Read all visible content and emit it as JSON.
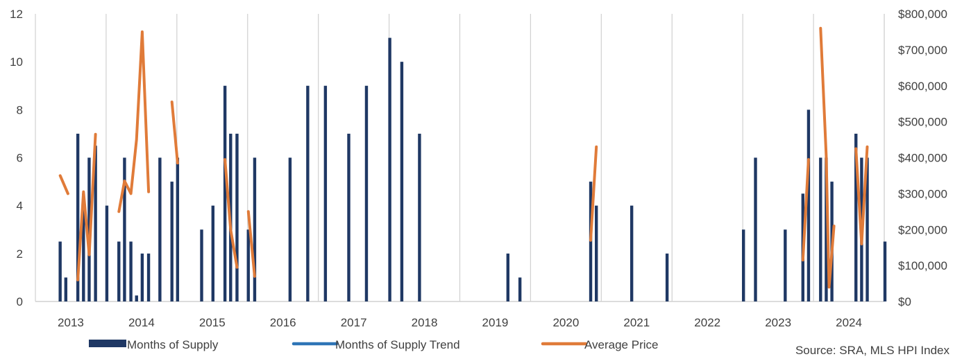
{
  "chart_data": {
    "type": "bar",
    "title": "",
    "xlabel": "",
    "ylabel": "",
    "ylim": [
      0,
      12
    ],
    "y2lim": [
      0,
      800000
    ],
    "yticks": [
      "0",
      "2",
      "4",
      "6",
      "8",
      "10",
      "12"
    ],
    "y2ticks": [
      "$0",
      "$100,000",
      "$200,000",
      "$300,000",
      "$400,000",
      "$500,000",
      "$600,000",
      "$700,000",
      "$800,000"
    ],
    "xticks": [
      "2013",
      "2014",
      "2015",
      "2016",
      "2017",
      "2018",
      "2019",
      "2020",
      "2021",
      "2022",
      "2023",
      "2024"
    ],
    "grid": "vertical",
    "legend_position": "bottom",
    "colors": {
      "bar": "#1f3864",
      "trend": "#2e75b6",
      "price": "#e07b39",
      "grid": "#d0d0d0",
      "text": "#404040"
    },
    "series": [
      {
        "name": "Months of Supply",
        "type": "bar",
        "axis": "left",
        "points": [
          {
            "x": 2013.05,
            "y": 2.5
          },
          {
            "x": 2013.13,
            "y": 1
          },
          {
            "x": 2013.3,
            "y": 7
          },
          {
            "x": 2013.38,
            "y": 4.5
          },
          {
            "x": 2013.46,
            "y": 6
          },
          {
            "x": 2013.55,
            "y": 6.5
          },
          {
            "x": 2013.71,
            "y": 4
          },
          {
            "x": 2013.88,
            "y": 2.5
          },
          {
            "x": 2013.96,
            "y": 6
          },
          {
            "x": 2014.05,
            "y": 2.5
          },
          {
            "x": 2014.13,
            "y": 0.25
          },
          {
            "x": 2014.21,
            "y": 2
          },
          {
            "x": 2014.3,
            "y": 2
          },
          {
            "x": 2014.46,
            "y": 6
          },
          {
            "x": 2014.63,
            "y": 5
          },
          {
            "x": 2014.71,
            "y": 6
          },
          {
            "x": 2015.05,
            "y": 3
          },
          {
            "x": 2015.21,
            "y": 4
          },
          {
            "x": 2015.38,
            "y": 9
          },
          {
            "x": 2015.46,
            "y": 7
          },
          {
            "x": 2015.55,
            "y": 7
          },
          {
            "x": 2015.71,
            "y": 3
          },
          {
            "x": 2015.8,
            "y": 6
          },
          {
            "x": 2016.3,
            "y": 6
          },
          {
            "x": 2016.55,
            "y": 9
          },
          {
            "x": 2016.8,
            "y": 9
          },
          {
            "x": 2017.13,
            "y": 7
          },
          {
            "x": 2017.38,
            "y": 9
          },
          {
            "x": 2017.71,
            "y": 11
          },
          {
            "x": 2017.88,
            "y": 10
          },
          {
            "x": 2018.13,
            "y": 7
          },
          {
            "x": 2019.38,
            "y": 2
          },
          {
            "x": 2019.55,
            "y": 1
          },
          {
            "x": 2020.55,
            "y": 5
          },
          {
            "x": 2020.63,
            "y": 4
          },
          {
            "x": 2021.13,
            "y": 4
          },
          {
            "x": 2021.63,
            "y": 2
          },
          {
            "x": 2022.71,
            "y": 3
          },
          {
            "x": 2022.88,
            "y": 6
          },
          {
            "x": 2023.3,
            "y": 3
          },
          {
            "x": 2023.55,
            "y": 4.5
          },
          {
            "x": 2023.63,
            "y": 8
          },
          {
            "x": 2023.8,
            "y": 6
          },
          {
            "x": 2023.88,
            "y": 6
          },
          {
            "x": 2023.96,
            "y": 5
          },
          {
            "x": 2024.3,
            "y": 7
          },
          {
            "x": 2024.38,
            "y": 6
          },
          {
            "x": 2024.46,
            "y": 6
          },
          {
            "x": 2024.71,
            "y": 2.5
          }
        ]
      },
      {
        "name": "Months of Supply Trend",
        "type": "line",
        "axis": "left",
        "points": []
      },
      {
        "name": "Average Price",
        "type": "line",
        "axis": "right",
        "segments": [
          [
            {
              "x": 2013.05,
              "y": 350000
            },
            {
              "x": 2013.16,
              "y": 300000
            }
          ],
          [
            {
              "x": 2013.3,
              "y": 60000
            },
            {
              "x": 2013.38,
              "y": 305000
            },
            {
              "x": 2013.46,
              "y": 130000
            },
            {
              "x": 2013.55,
              "y": 465000
            }
          ],
          [
            {
              "x": 2013.88,
              "y": 250000
            },
            {
              "x": 2013.96,
              "y": 335000
            },
            {
              "x": 2014.05,
              "y": 300000
            },
            {
              "x": 2014.13,
              "y": 450000
            },
            {
              "x": 2014.21,
              "y": 750000
            },
            {
              "x": 2014.3,
              "y": 305000
            }
          ],
          [
            {
              "x": 2014.63,
              "y": 555000
            },
            {
              "x": 2014.71,
              "y": 385000
            }
          ],
          [
            {
              "x": 2015.38,
              "y": 395000
            },
            {
              "x": 2015.46,
              "y": 200000
            },
            {
              "x": 2015.55,
              "y": 95000
            }
          ],
          [
            {
              "x": 2015.71,
              "y": 250000
            },
            {
              "x": 2015.8,
              "y": 70000
            }
          ],
          [
            {
              "x": 2020.55,
              "y": 170000
            },
            {
              "x": 2020.63,
              "y": 430000
            }
          ],
          [
            {
              "x": 2023.55,
              "y": 115000
            },
            {
              "x": 2023.63,
              "y": 395000
            }
          ],
          [
            {
              "x": 2023.8,
              "y": 760000
            },
            {
              "x": 2023.88,
              "y": 405000
            },
            {
              "x": 2023.92,
              "y": 40000
            },
            {
              "x": 2023.99,
              "y": 210000
            }
          ],
          [
            {
              "x": 2024.3,
              "y": 425000
            },
            {
              "x": 2024.38,
              "y": 160000
            },
            {
              "x": 2024.46,
              "y": 430000
            }
          ]
        ]
      }
    ],
    "legend": [
      "Months of Supply",
      "Months of Supply Trend",
      "Average Price"
    ],
    "source": "Source: SRA, MLS HPI Index"
  }
}
